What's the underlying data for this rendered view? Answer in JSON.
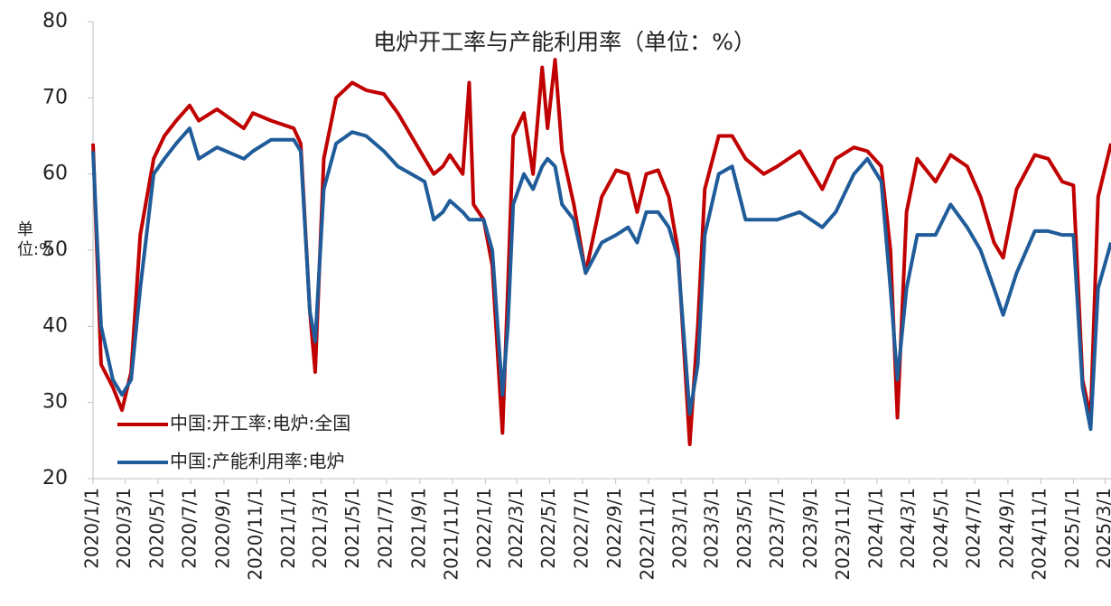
{
  "chart_data": {
    "type": "line",
    "title": "电炉开工率与产能利用率（单位：%）",
    "y_label": "单位:%",
    "x": [
      "2020/1/1",
      "2020/1/16",
      "2020/2/7",
      "2020/2/24",
      "2020/3/12",
      "2020/3/29",
      "2020/4/23",
      "2020/5/13",
      "2020/6/4",
      "2020/6/29",
      "2020/7/16",
      "2020/8/19",
      "2020/10/8",
      "2020/10/25",
      "2020/11/28",
      "2021/1/9",
      "2021/1/22",
      "2021/2/8",
      "2021/2/18",
      "2021/3/6",
      "2021/3/29",
      "2021/4/28",
      "2021/5/24",
      "2021/6/26",
      "2021/7/22",
      "2021/8/16",
      "2021/9/10",
      "2021/9/27",
      "2021/10/14",
      "2021/10/27",
      "2021/11/20",
      "2021/12/2",
      "2021/12/10",
      "2021/12/29",
      "2022/1/14",
      "2022/2/2",
      "2022/2/12",
      "2022/2/22",
      "2022/3/14",
      "2022/3/31",
      "2022/4/17",
      "2022/4/27",
      "2022/5/11",
      "2022/5/24",
      "2022/6/15",
      "2022/7/7",
      "2022/8/6",
      "2022/9/2",
      "2022/9/24",
      "2022/10/11",
      "2022/10/28",
      "2022/11/19",
      "2022/12/9",
      "2022/12/26",
      "2023/1/17",
      "2023/2/1",
      "2023/2/14",
      "2023/3/12",
      "2023/4/6",
      "2023/5/1",
      "2023/6/4",
      "2023/6/29",
      "2023/8/10",
      "2023/9/21",
      "2023/10/16",
      "2023/11/19",
      "2023/12/14",
      "2024/1/9",
      "2024/1/26",
      "2024/2/8",
      "2024/2/25",
      "2024/3/16",
      "2024/4/19",
      "2024/5/17",
      "2024/6/17",
      "2024/7/12",
      "2024/8/6",
      "2024/8/23",
      "2024/9/17",
      "2024/10/21",
      "2024/11/15",
      "2024/12/11",
      "2025/1/1",
      "2025/1/18",
      "2025/2/2",
      "2025/2/16",
      "2025/3/12"
    ],
    "series": [
      {
        "name": "中国:开工率:电炉:全国",
        "color": "#c00000",
        "values": [
          64,
          35,
          32,
          29,
          34,
          52,
          62,
          65,
          67,
          69,
          67,
          68.5,
          66,
          68,
          67,
          66,
          64,
          42,
          34,
          62,
          70,
          72,
          71,
          70.5,
          68,
          65,
          62,
          60,
          61,
          62.5,
          60,
          72,
          56,
          54,
          48,
          26,
          45,
          65,
          68,
          60,
          74,
          66,
          75,
          63,
          56,
          47,
          57,
          60.5,
          60,
          55,
          60,
          60.5,
          57,
          50,
          24.5,
          40,
          58,
          65,
          65,
          62,
          60,
          61,
          63,
          58,
          62,
          63.5,
          63,
          61,
          50,
          28,
          55,
          62,
          59,
          62.5,
          61,
          57,
          51,
          49,
          58,
          62.5,
          62,
          59,
          58.5,
          33,
          28,
          57,
          64
        ]
      },
      {
        "name": "中国:产能利用率:电炉",
        "color": "#1f5c99",
        "values": [
          63,
          40,
          33,
          31,
          33,
          45,
          60,
          62,
          64,
          66,
          62,
          63.5,
          62,
          63,
          64.5,
          64.5,
          63,
          42,
          38,
          58,
          64,
          65.5,
          65,
          63,
          61,
          60,
          59,
          54,
          55,
          56.5,
          55,
          54,
          54,
          54,
          50,
          31,
          40,
          56,
          60,
          58,
          61,
          62,
          61,
          56,
          54,
          47,
          51,
          52,
          53,
          51,
          55,
          55,
          53,
          49,
          28.5,
          35,
          52,
          60,
          61,
          54,
          54,
          54,
          55,
          53,
          55,
          60,
          62,
          59,
          45,
          33,
          45,
          52,
          52,
          56,
          53,
          50,
          45,
          41.5,
          47,
          52.5,
          52.5,
          52,
          52,
          32,
          26.5,
          45,
          51
        ]
      }
    ],
    "xlim": [
      "2020/1/1",
      "2025/3/12"
    ],
    "xticks": [
      "2020/1/1",
      "2020/3/1",
      "2020/5/1",
      "2020/7/1",
      "2020/9/1",
      "2020/11/1",
      "2021/1/1",
      "2021/3/1",
      "2021/5/1",
      "2021/7/1",
      "2021/9/1",
      "2021/11/1",
      "2022/1/1",
      "2022/3/1",
      "2022/5/1",
      "2022/7/1",
      "2022/9/1",
      "2022/11/1",
      "2023/1/1",
      "2023/3/1",
      "2023/5/1",
      "2023/7/1",
      "2023/9/1",
      "2023/11/1",
      "2024/1/1",
      "2024/3/1",
      "2024/5/1",
      "2024/7/1",
      "2024/9/1",
      "2024/11/1",
      "2025/1/1",
      "2025/3/1"
    ],
    "ylim": [
      20,
      80
    ],
    "yticks": [
      20,
      30,
      40,
      50,
      60,
      70,
      80
    ],
    "grid": false,
    "legend": "lower-left"
  }
}
